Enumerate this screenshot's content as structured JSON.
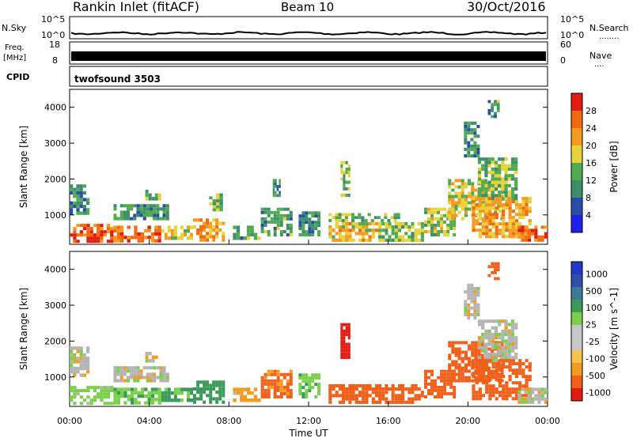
{
  "header": {
    "station": "Rankin Inlet (fitACF)",
    "beam": "Beam 10",
    "date": "30/Oct/2016"
  },
  "top_panels": {
    "nsky": {
      "left_label": "N.Sky",
      "left_ticks": [
        "10^5",
        "10^0"
      ],
      "right_label": "N.Search",
      "right_ticks": [
        "10^5",
        "10^0"
      ],
      "right_legend": "........"
    },
    "freq": {
      "left_label_line1": "Freq.",
      "left_label_line2": "[MHz]",
      "left_ticks": [
        "18",
        "8"
      ],
      "right_label": "Nave",
      "right_ticks": [
        "60",
        "0"
      ],
      "right_legend": "...."
    },
    "cpid": {
      "label": "CPID",
      "program": "twofsound 3503"
    }
  },
  "colors": {
    "power_scale": [
      "#1f1ff0",
      "#2a4ea8",
      "#3c8f6a",
      "#4faa50",
      "#e8d23a",
      "#f59a1e",
      "#f26a10",
      "#e31c10"
    ],
    "velocity_scale": [
      "#e41a10",
      "#f0601a",
      "#f59a20",
      "#f8c64a",
      "#c8c8c8",
      "#c8c8c8",
      "#7ad04a",
      "#3a9a5a",
      "#3a7a9a",
      "#2e4ea8",
      "#1f3ac8"
    ],
    "ground_scatter": "#b4b4b4"
  },
  "chart_data": [
    {
      "type": "heatmap",
      "name": "power",
      "xlabel": "",
      "ylabel": "Slant Range [km]",
      "y_ticks": [
        "1000",
        "2000",
        "3000",
        "4000"
      ],
      "ylim": [
        180,
        4500
      ],
      "xlim_hours": [
        0,
        24
      ],
      "colorbar_label": "Power [dB]",
      "colorbar_ticks": [
        "4",
        "8",
        "12",
        "16",
        "20",
        "24",
        "28"
      ],
      "colorbar_range": [
        0,
        32
      ],
      "scatter_regions": [
        {
          "t0": 0.0,
          "t1": 1.0,
          "r0": 1000,
          "r1": 1850,
          "v": 10
        },
        {
          "t0": 0.0,
          "t1": 2.2,
          "r0": 220,
          "r1": 750,
          "v": 27
        },
        {
          "t0": 2.2,
          "t1": 4.6,
          "r0": 230,
          "r1": 700,
          "v": 25
        },
        {
          "t0": 2.2,
          "t1": 5.0,
          "r0": 850,
          "r1": 1300,
          "v": 11
        },
        {
          "t0": 3.8,
          "t1": 4.6,
          "r0": 1400,
          "r1": 1700,
          "v": 13
        },
        {
          "t0": 4.6,
          "t1": 6.2,
          "r0": 300,
          "r1": 700,
          "v": 18
        },
        {
          "t0": 6.2,
          "t1": 7.8,
          "r0": 250,
          "r1": 900,
          "v": 22
        },
        {
          "t0": 7.0,
          "t1": 7.7,
          "r0": 1100,
          "r1": 1600,
          "v": 14
        },
        {
          "t0": 8.2,
          "t1": 9.6,
          "r0": 300,
          "r1": 700,
          "v": 12
        },
        {
          "t0": 9.6,
          "t1": 11.2,
          "r0": 400,
          "r1": 1200,
          "v": 12
        },
        {
          "t0": 10.2,
          "t1": 10.6,
          "r0": 1500,
          "r1": 2000,
          "v": 10
        },
        {
          "t0": 11.5,
          "t1": 12.6,
          "r0": 400,
          "r1": 1100,
          "v": 10
        },
        {
          "t0": 13.0,
          "t1": 15.5,
          "r0": 250,
          "r1": 800,
          "v": 20
        },
        {
          "t0": 13.0,
          "t1": 16.6,
          "r0": 800,
          "r1": 1050,
          "v": 14
        },
        {
          "t0": 13.6,
          "t1": 14.1,
          "r0": 1500,
          "r1": 2500,
          "v": 14
        },
        {
          "t0": 15.5,
          "t1": 17.8,
          "r0": 250,
          "r1": 800,
          "v": 15
        },
        {
          "t0": 17.8,
          "t1": 19.4,
          "r0": 400,
          "r1": 1200,
          "v": 16
        },
        {
          "t0": 19.0,
          "t1": 21.8,
          "r0": 850,
          "r1": 2000,
          "v": 18
        },
        {
          "t0": 20.5,
          "t1": 22.5,
          "r0": 1400,
          "r1": 2600,
          "v": 14
        },
        {
          "t0": 20.2,
          "t1": 23.2,
          "r0": 350,
          "r1": 1500,
          "v": 22
        },
        {
          "t0": 22.5,
          "t1": 24.0,
          "r0": 250,
          "r1": 700,
          "v": 27
        },
        {
          "t0": 19.8,
          "t1": 20.6,
          "r0": 2600,
          "r1": 3600,
          "v": 10
        },
        {
          "t0": 21.0,
          "t1": 21.6,
          "r0": 3700,
          "r1": 4200,
          "v": 12
        }
      ]
    },
    {
      "type": "heatmap",
      "name": "velocity",
      "xlabel": "Time UT",
      "ylabel": "Slant Range [km]",
      "y_ticks": [
        "1000",
        "2000",
        "3000",
        "4000"
      ],
      "ylim": [
        180,
        4500
      ],
      "x_ticks": [
        "00:00",
        "04:00",
        "08:00",
        "12:00",
        "16:00",
        "20:00",
        "00:00"
      ],
      "xlim_hours": [
        0,
        24
      ],
      "colorbar_label": "Velocity [m s^-1]",
      "colorbar_ticks": [
        "1000",
        "500",
        "100",
        "25",
        "-25",
        "-100",
        "-500",
        "-1000"
      ],
      "scatter_regions": [
        {
          "t0": 0.0,
          "t1": 1.0,
          "r0": 1000,
          "r1": 1850,
          "v": 0
        },
        {
          "t0": 0.0,
          "t1": 2.2,
          "r0": 220,
          "r1": 750,
          "v": 60
        },
        {
          "t0": 2.2,
          "t1": 4.6,
          "r0": 230,
          "r1": 700,
          "v": 80
        },
        {
          "t0": 2.2,
          "t1": 5.0,
          "r0": 850,
          "r1": 1300,
          "v": 0
        },
        {
          "t0": 3.8,
          "t1": 4.6,
          "r0": 1400,
          "r1": 1700,
          "v": 0
        },
        {
          "t0": 4.6,
          "t1": 6.2,
          "r0": 300,
          "r1": 700,
          "v": 120
        },
        {
          "t0": 6.2,
          "t1": 7.8,
          "r0": 250,
          "r1": 900,
          "v": 150
        },
        {
          "t0": 8.2,
          "t1": 9.6,
          "r0": 300,
          "r1": 700,
          "v": -60
        },
        {
          "t0": 9.6,
          "t1": 11.2,
          "r0": 400,
          "r1": 1200,
          "v": -120
        },
        {
          "t0": 11.5,
          "t1": 12.6,
          "r0": 400,
          "r1": 1100,
          "v": 90
        },
        {
          "t0": 13.0,
          "t1": 15.5,
          "r0": 250,
          "r1": 800,
          "v": -200
        },
        {
          "t0": 13.6,
          "t1": 14.1,
          "r0": 1500,
          "r1": 2500,
          "v": -800
        },
        {
          "t0": 15.5,
          "t1": 17.8,
          "r0": 250,
          "r1": 800,
          "v": -150
        },
        {
          "t0": 17.8,
          "t1": 19.4,
          "r0": 400,
          "r1": 1200,
          "v": -300
        },
        {
          "t0": 19.0,
          "t1": 21.8,
          "r0": 850,
          "r1": 2000,
          "v": -350
        },
        {
          "t0": 20.5,
          "t1": 22.5,
          "r0": 1400,
          "r1": 2600,
          "v": 0
        },
        {
          "t0": 20.2,
          "t1": 23.2,
          "r0": 350,
          "r1": 1500,
          "v": -250
        },
        {
          "t0": 22.5,
          "t1": 24.0,
          "r0": 250,
          "r1": 700,
          "v": 0
        },
        {
          "t0": 19.8,
          "t1": 20.6,
          "r0": 2600,
          "r1": 3600,
          "v": 0
        },
        {
          "t0": 21.0,
          "t1": 21.6,
          "r0": 3700,
          "r1": 4200,
          "v": -200
        }
      ]
    }
  ]
}
